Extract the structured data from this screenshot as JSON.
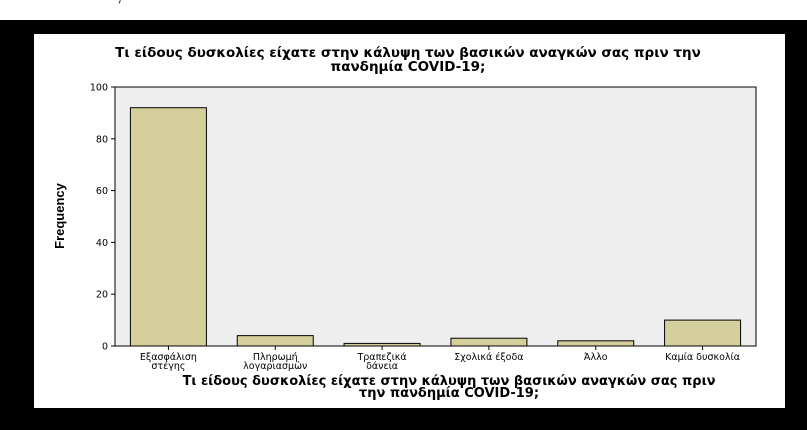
{
  "chart_data": {
    "type": "bar",
    "title_lines": [
      "Τι είδους δυσκολίες είχατε στην κάλυψη των βασικών αναγκών σας πριν την",
      "πανδημία COVID-19;"
    ],
    "xlabel_lines": [
      "Τι είδους δυσκολίες είχατε στην κάλυψη των βασικών αναγκών σας πριν",
      "την πανδημία COVID-19;"
    ],
    "ylabel": "Frequency",
    "categories": [
      [
        "Εξασφάλιση",
        "στέγης"
      ],
      [
        "Πληρωμή",
        "λογαριασμών"
      ],
      [
        "Τραπεζικά",
        "δάνεια"
      ],
      [
        "Σχολικά έξοδα"
      ],
      [
        "Άλλο"
      ],
      [
        "Καμία δυσκολία"
      ]
    ],
    "values": [
      92,
      4,
      1,
      3,
      2,
      10
    ],
    "yticks": [
      0,
      20,
      40,
      60,
      80,
      100
    ],
    "ylim": [
      0,
      100
    ],
    "grid": false,
    "colors": {
      "bar_fill": "#d5cf9b",
      "plot_bg": "#eeeeee",
      "bar_stroke": "#000000"
    }
  }
}
